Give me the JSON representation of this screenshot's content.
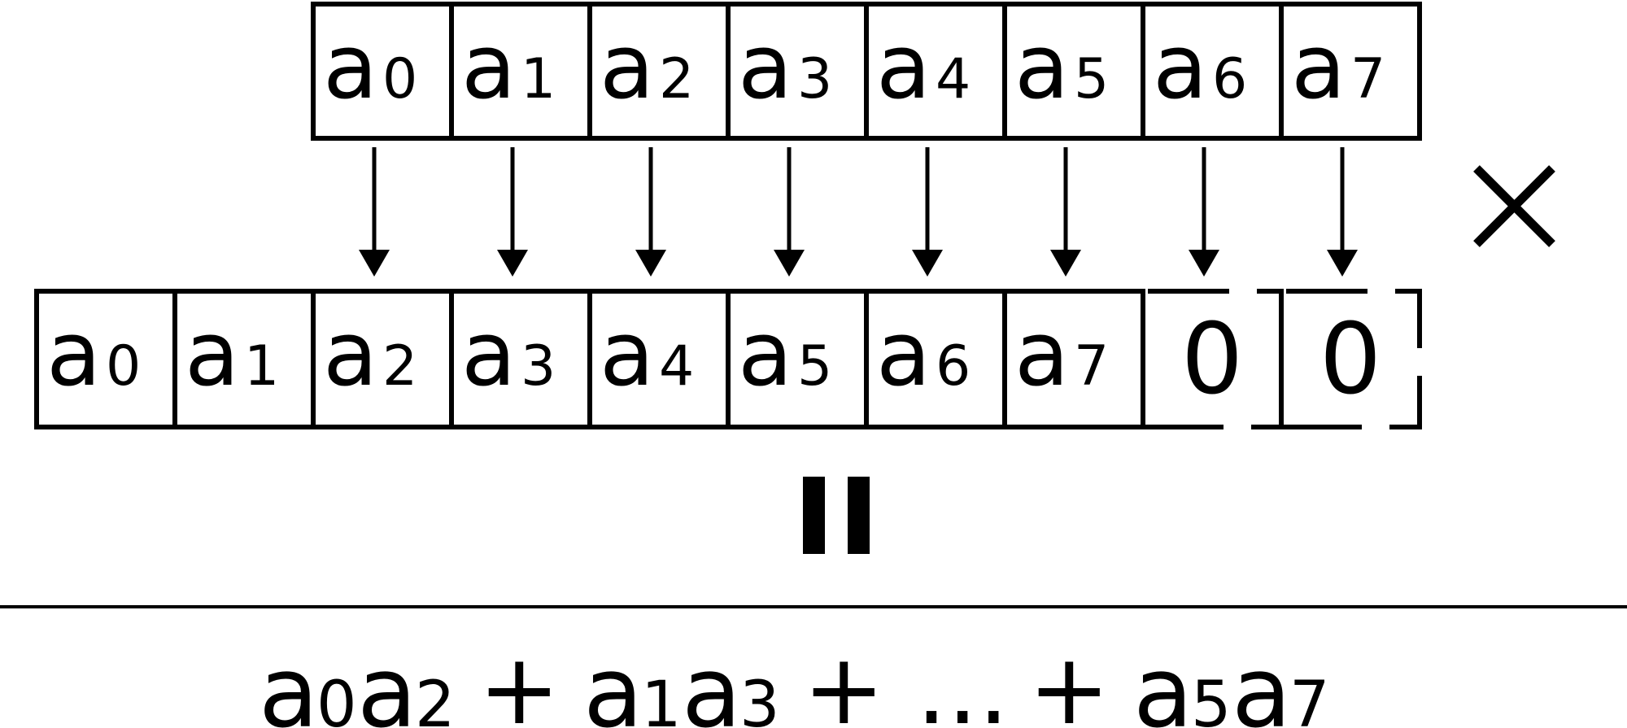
{
  "colors": {
    "ink": "#000000",
    "background": "#ffffff"
  },
  "diagram": {
    "top_row": {
      "letter": "a",
      "subscripts": [
        "0",
        "1",
        "2",
        "3",
        "4",
        "5",
        "6",
        "7"
      ]
    },
    "bottom_row": {
      "letter": "a",
      "subscripts": [
        "0",
        "1",
        "2",
        "3",
        "4",
        "5",
        "6",
        "7"
      ],
      "padding_cells": [
        "0",
        "0"
      ]
    },
    "multiply_symbol": "multiply-icon",
    "equals_symbol": "equals-icon",
    "result": {
      "terms": [
        {
          "factors": [
            {
              "letter": "a",
              "sub": "0"
            },
            {
              "letter": "a",
              "sub": "2"
            }
          ]
        },
        {
          "factors": [
            {
              "letter": "a",
              "sub": "1"
            },
            {
              "letter": "a",
              "sub": "3"
            }
          ]
        },
        {
          "ellipsis": "..."
        },
        {
          "factors": [
            {
              "letter": "a",
              "sub": "5"
            },
            {
              "letter": "a",
              "sub": "7"
            }
          ]
        }
      ],
      "operator": "+"
    }
  }
}
